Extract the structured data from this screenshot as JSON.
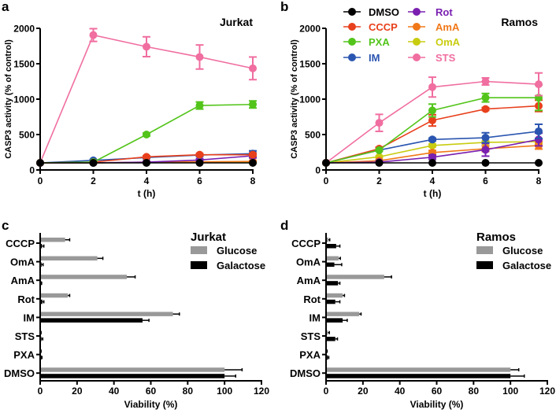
{
  "colors": {
    "DMSO": "#000000",
    "CCCP": "#e8401c",
    "PXA": "#52c41a",
    "IM": "#2a55b0",
    "Rot": "#7a1fb0",
    "AmA": "#f07818",
    "OmA": "#c8cc10",
    "STS": "#f06ea0",
    "Glucose": "#999999",
    "Galactose": "#000000"
  },
  "chart_data": [
    {
      "panel": "a",
      "type": "line",
      "title": "Jurkat",
      "xlabel": "t (h)",
      "ylabel": "CASP3 activity  (% of control)",
      "xlim": [
        0,
        8
      ],
      "ylim": [
        0,
        2000
      ],
      "xticks": [
        "0",
        "2",
        "4",
        "6",
        "8"
      ],
      "yticks": [
        "0",
        "500",
        "1000",
        "1500",
        "2000"
      ],
      "x": [
        0,
        2,
        4,
        6,
        8
      ],
      "series": [
        {
          "name": "OmA",
          "values": [
            100,
            100,
            105,
            105,
            105
          ],
          "err": [
            0,
            0,
            5,
            5,
            10
          ]
        },
        {
          "name": "AmA",
          "values": [
            100,
            100,
            110,
            115,
            120
          ],
          "err": [
            0,
            0,
            10,
            10,
            10
          ]
        },
        {
          "name": "Rot",
          "values": [
            100,
            100,
            110,
            140,
            200
          ],
          "err": [
            0,
            0,
            10,
            15,
            30
          ]
        },
        {
          "name": "IM",
          "values": [
            100,
            135,
            175,
            210,
            230
          ],
          "err": [
            0,
            10,
            15,
            20,
            40
          ]
        },
        {
          "name": "CCCP",
          "values": [
            100,
            110,
            185,
            215,
            215
          ],
          "err": [
            0,
            10,
            15,
            15,
            20
          ]
        },
        {
          "name": "PXA",
          "values": [
            100,
            110,
            500,
            910,
            925
          ],
          "err": [
            0,
            10,
            20,
            50,
            50
          ]
        },
        {
          "name": "STS",
          "values": [
            100,
            1905,
            1740,
            1595,
            1435
          ],
          "err": [
            0,
            90,
            140,
            170,
            160
          ]
        },
        {
          "name": "DMSO",
          "values": [
            100,
            100,
            100,
            100,
            100
          ],
          "err": [
            0,
            0,
            0,
            0,
            0
          ]
        }
      ]
    },
    {
      "panel": "b",
      "type": "line",
      "title": "Ramos",
      "xlabel": "t (h)",
      "ylabel": "CASP3 activity  (% of control)",
      "xlim": [
        0,
        8
      ],
      "ylim": [
        0,
        2000
      ],
      "xticks": [
        "0",
        "2",
        "4",
        "6",
        "8"
      ],
      "yticks": [
        "0",
        "500",
        "1000",
        "1500",
        "2000"
      ],
      "x": [
        0,
        2,
        4,
        6,
        8
      ],
      "legend": [
        "DMSO",
        "CCCP",
        "PXA",
        "IM",
        "Rot",
        "AmA",
        "OmA",
        "STS"
      ],
      "series": [
        {
          "name": "OmA",
          "values": [
            100,
            185,
            345,
            390,
            400
          ],
          "err": [
            0,
            10,
            20,
            20,
            30
          ]
        },
        {
          "name": "AmA",
          "values": [
            100,
            130,
            245,
            300,
            345
          ],
          "err": [
            0,
            10,
            30,
            40,
            50
          ]
        },
        {
          "name": "Rot",
          "values": [
            100,
            110,
            180,
            285,
            430
          ],
          "err": [
            0,
            10,
            30,
            90,
            90
          ]
        },
        {
          "name": "IM",
          "values": [
            100,
            280,
            430,
            455,
            545
          ],
          "err": [
            0,
            10,
            20,
            70,
            100
          ]
        },
        {
          "name": "CCCP",
          "values": [
            100,
            300,
            700,
            860,
            905
          ],
          "err": [
            0,
            20,
            80,
            20,
            80
          ]
        },
        {
          "name": "PXA",
          "values": [
            100,
            280,
            840,
            1020,
            1020
          ],
          "err": [
            0,
            10,
            90,
            60,
            180
          ]
        },
        {
          "name": "STS",
          "values": [
            100,
            665,
            1170,
            1250,
            1210
          ],
          "err": [
            0,
            120,
            140,
            50,
            160
          ]
        },
        {
          "name": "DMSO",
          "values": [
            100,
            100,
            100,
            100,
            100
          ],
          "err": [
            0,
            0,
            0,
            0,
            0
          ]
        }
      ]
    },
    {
      "panel": "c",
      "type": "bar",
      "orientation": "horizontal",
      "title": "Jurkat",
      "xlabel": "Viability (%)",
      "xlim": [
        0,
        120
      ],
      "xticks": [
        "0",
        "20",
        "40",
        "60",
        "80",
        "100",
        "120"
      ],
      "categories": [
        "CCCP",
        "OmA",
        "AmA",
        "Rot",
        "IM",
        "STS",
        "PXA",
        "DMSO"
      ],
      "series": [
        {
          "name": "Glucose",
          "values": [
            13.5,
            31,
            47,
            15,
            72,
            0.2,
            0.2,
            100
          ],
          "err": [
            2.5,
            3,
            4.5,
            1,
            3.5,
            0.3,
            0.3,
            9.5
          ]
        },
        {
          "name": "Galactose",
          "values": [
            1,
            0.8,
            0.3,
            1.2,
            55.5,
            0.7,
            0.7,
            100
          ],
          "err": [
            1,
            0.8,
            0.5,
            0.8,
            3.5,
            0.7,
            0.3,
            6
          ]
        }
      ]
    },
    {
      "panel": "d",
      "type": "bar",
      "orientation": "horizontal",
      "title": "Ramos",
      "xlabel": "Viability (%)",
      "xlim": [
        0,
        120
      ],
      "xticks": [
        "0",
        "20",
        "40",
        "60",
        "80",
        "100",
        "120"
      ],
      "categories": [
        "CCCP",
        "OmA",
        "AmA",
        "Rot",
        "IM",
        "STS",
        "PXA",
        "DMSO"
      ],
      "series": [
        {
          "name": "Glucose",
          "values": [
            1.3,
            6.8,
            31.5,
            9,
            18,
            1,
            0.3,
            100
          ],
          "err": [
            0.7,
            1,
            4,
            1,
            1,
            0.8,
            0.3,
            4.5
          ]
        },
        {
          "name": "Galactose",
          "values": [
            5.5,
            4.5,
            6.5,
            5,
            9,
            5,
            1,
            100
          ],
          "err": [
            2,
            4,
            1,
            2.5,
            2.5,
            1.2,
            0.5,
            7.5
          ]
        }
      ]
    }
  ]
}
